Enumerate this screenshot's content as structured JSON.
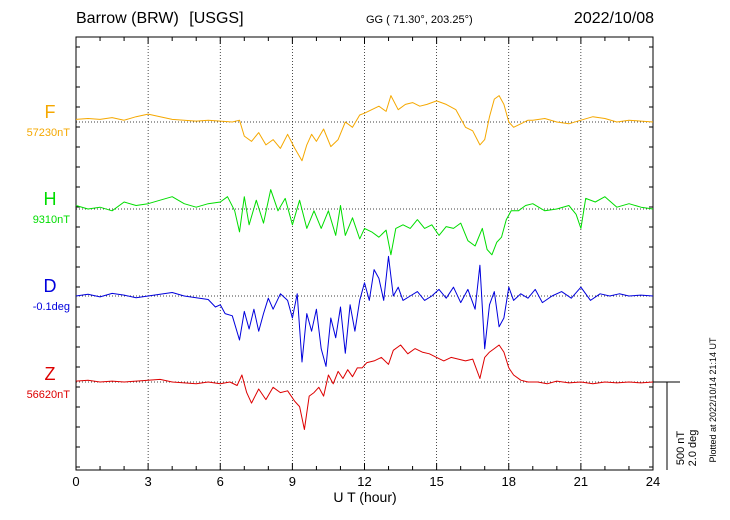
{
  "header": {
    "station": "Barrow (BRW)",
    "source": "[USGS]",
    "coordinates": "GG ( 71.30°, 203.25°)",
    "date": "2022/10/08"
  },
  "footer": {
    "plotted": "Plotted at 2022/10/14 21:14 UT"
  },
  "scale_bar": {
    "field": "500 nT",
    "angle": "2.0 deg"
  },
  "chart_data": {
    "type": "line",
    "xlabel": "U T (hour)",
    "xlim": [
      0,
      24
    ],
    "xticks": [
      0,
      3,
      6,
      9,
      12,
      15,
      18,
      21,
      24
    ],
    "colors": {
      "F": "#f5a800",
      "H": "#00dd00",
      "D": "#0000dd",
      "Z": "#dd0000"
    },
    "series": [
      {
        "name": "F",
        "baseline_label": "57230nT",
        "unit": "nT",
        "baseline": 57230,
        "x": [
          0,
          0.5,
          1,
          1.5,
          2,
          2.5,
          3,
          3.5,
          4,
          4.5,
          5,
          5.5,
          6,
          6.5,
          6.8,
          7.0,
          7.3,
          7.6,
          7.9,
          8.2,
          8.5,
          8.8,
          9.1,
          9.4,
          9.6,
          9.8,
          10.0,
          10.3,
          10.6,
          10.9,
          11.2,
          11.5,
          11.8,
          12.0,
          12.3,
          12.6,
          12.9,
          13.1,
          13.4,
          13.7,
          14.0,
          14.3,
          14.6,
          15.0,
          15.4,
          15.8,
          16.2,
          16.5,
          16.8,
          17.0,
          17.2,
          17.4,
          17.6,
          17.8,
          18.0,
          18.2,
          18.5,
          18.8,
          19.0,
          19.5,
          20.0,
          20.5,
          21.0,
          21.5,
          22,
          22.5,
          23,
          23.5,
          24
        ],
        "y": [
          57245,
          57250,
          57245,
          57255,
          57240,
          57260,
          57275,
          57260,
          57245,
          57240,
          57235,
          57240,
          57235,
          57230,
          57240,
          57150,
          57120,
          57170,
          57100,
          57130,
          57080,
          57160,
          57080,
          57010,
          57100,
          57160,
          57120,
          57190,
          57090,
          57130,
          57230,
          57200,
          57270,
          57280,
          57300,
          57320,
          57290,
          57380,
          57300,
          57330,
          57340,
          57320,
          57330,
          57350,
          57330,
          57300,
          57200,
          57180,
          57100,
          57130,
          57260,
          57360,
          57380,
          57330,
          57230,
          57200,
          57220,
          57240,
          57240,
          57250,
          57230,
          57220,
          57240,
          57260,
          57250,
          57230,
          57240,
          57235,
          57230
        ]
      },
      {
        "name": "H",
        "baseline_label": "9310nT",
        "unit": "nT",
        "baseline": 9310,
        "x": [
          0,
          0.5,
          1,
          1.5,
          2,
          2.5,
          3,
          3.5,
          4,
          4.5,
          5,
          5.5,
          6,
          6.3,
          6.6,
          6.8,
          7.0,
          7.2,
          7.5,
          7.8,
          8.1,
          8.4,
          8.7,
          9.0,
          9.3,
          9.6,
          9.9,
          10.2,
          10.5,
          10.8,
          11.0,
          11.2,
          11.5,
          11.8,
          12.0,
          12.3,
          12.6,
          12.9,
          13.1,
          13.3,
          13.6,
          13.9,
          14.2,
          14.5,
          14.8,
          15.1,
          15.4,
          15.7,
          16.0,
          16.3,
          16.6,
          16.9,
          17.1,
          17.3,
          17.5,
          17.7,
          17.9,
          18.1,
          18.4,
          18.7,
          19.0,
          19.5,
          20.0,
          20.5,
          20.8,
          21.0,
          21.2,
          21.6,
          22,
          22.5,
          23,
          23.5,
          24
        ],
        "y": [
          9330,
          9310,
          9320,
          9300,
          9350,
          9330,
          9340,
          9360,
          9380,
          9340,
          9320,
          9340,
          9350,
          9380,
          9300,
          9180,
          9380,
          9220,
          9360,
          9230,
          9420,
          9300,
          9370,
          9220,
          9360,
          9200,
          9300,
          9200,
          9300,
          9160,
          9330,
          9160,
          9260,
          9140,
          9200,
          9180,
          9150,
          9190,
          9050,
          9200,
          9220,
          9200,
          9250,
          9200,
          9220,
          9160,
          9210,
          9200,
          9230,
          9130,
          9100,
          9200,
          9080,
          9050,
          9120,
          9150,
          9250,
          9300,
          9300,
          9330,
          9340,
          9300,
          9310,
          9330,
          9280,
          9200,
          9370,
          9350,
          9380,
          9320,
          9340,
          9320,
          9310
        ]
      },
      {
        "name": "D",
        "baseline_label": "-0.1deg",
        "unit": "deg",
        "baseline": -0.1,
        "x": [
          0,
          0.5,
          1,
          1.5,
          2,
          2.5,
          3,
          3.5,
          4,
          4.5,
          5,
          5.5,
          5.8,
          6.0,
          6.2,
          6.5,
          6.8,
          7.0,
          7.2,
          7.4,
          7.6,
          7.8,
          8.0,
          8.2,
          8.5,
          8.8,
          9.0,
          9.2,
          9.4,
          9.6,
          9.8,
          10.0,
          10.2,
          10.4,
          10.6,
          10.8,
          11.0,
          11.2,
          11.4,
          11.6,
          11.8,
          12.0,
          12.2,
          12.4,
          12.6,
          12.8,
          13.0,
          13.2,
          13.4,
          13.6,
          13.9,
          14.2,
          14.5,
          14.8,
          15.1,
          15.4,
          15.7,
          16.0,
          16.3,
          16.6,
          16.8,
          17.0,
          17.2,
          17.4,
          17.6,
          17.8,
          18.0,
          18.2,
          18.5,
          18.8,
          19.1,
          19.4,
          19.8,
          20.2,
          20.6,
          21.0,
          21.4,
          21.8,
          22.2,
          22.6,
          23,
          23.5,
          24
        ],
        "y": [
          -0.1,
          -0.06,
          -0.12,
          -0.04,
          -0.08,
          -0.14,
          -0.1,
          -0.06,
          -0.02,
          -0.1,
          -0.14,
          -0.18,
          -0.35,
          -0.3,
          -0.5,
          -0.55,
          -1.1,
          -0.45,
          -0.85,
          -0.4,
          -0.9,
          -0.5,
          -0.15,
          -0.4,
          -0.05,
          -0.2,
          -0.6,
          -0.05,
          -1.6,
          -0.5,
          -0.9,
          -0.4,
          -1.3,
          -1.7,
          -0.6,
          -1.05,
          -0.35,
          -1.4,
          -0.3,
          -0.9,
          -0.2,
          0.2,
          -0.2,
          0.5,
          0.3,
          -0.2,
          0.8,
          -0.1,
          0.1,
          -0.2,
          -0.1,
          0.0,
          -0.2,
          -0.1,
          0.05,
          -0.15,
          0.1,
          -0.25,
          0.05,
          -0.4,
          0.6,
          -1.3,
          -0.3,
          0.0,
          -0.8,
          -0.6,
          0.1,
          -0.2,
          -0.05,
          -0.15,
          0.05,
          -0.25,
          -0.1,
          0.0,
          -0.15,
          0.1,
          -0.2,
          -0.05,
          -0.1,
          -0.05,
          -0.1,
          -0.08,
          -0.1
        ]
      },
      {
        "name": "Z",
        "baseline_label": "56620nT",
        "unit": "nT",
        "baseline": 56620,
        "x": [
          0,
          0.5,
          1,
          1.5,
          2,
          2.5,
          3,
          3.5,
          4,
          4.5,
          5,
          5.5,
          6,
          6.4,
          6.7,
          6.9,
          7.1,
          7.3,
          7.6,
          7.9,
          8.2,
          8.5,
          8.8,
          9.1,
          9.3,
          9.5,
          9.7,
          9.9,
          10.1,
          10.3,
          10.5,
          10.7,
          10.9,
          11.1,
          11.3,
          11.5,
          11.7,
          11.9,
          12.1,
          12.4,
          12.7,
          13.0,
          13.2,
          13.5,
          13.8,
          14.1,
          14.4,
          14.7,
          15.0,
          15.3,
          15.6,
          15.9,
          16.2,
          16.5,
          16.8,
          16.9,
          17.0,
          17.2,
          17.4,
          17.6,
          17.8,
          18.0,
          18.2,
          18.5,
          18.8,
          19.2,
          19.6,
          20,
          20.5,
          21,
          21.5,
          22,
          22.5,
          23,
          23.5,
          24
        ],
        "y": [
          56625,
          56630,
          56620,
          56625,
          56620,
          56625,
          56630,
          56635,
          56620,
          56615,
          56610,
          56620,
          56610,
          56620,
          56600,
          56660,
          56560,
          56500,
          56580,
          56520,
          56590,
          56560,
          56570,
          56510,
          56480,
          56350,
          56540,
          56560,
          56590,
          56540,
          56660,
          56610,
          56680,
          56640,
          56690,
          56650,
          56700,
          56700,
          56730,
          56740,
          56760,
          56720,
          56800,
          56830,
          56780,
          56810,
          56790,
          56780,
          56760,
          56740,
          56760,
          56750,
          56740,
          56750,
          56640,
          56700,
          56760,
          56790,
          56810,
          56830,
          56790,
          56700,
          56660,
          56630,
          56620,
          56620,
          56610,
          56625,
          56615,
          56620,
          56610,
          56620,
          56615,
          56620,
          56615,
          56620
        ]
      }
    ]
  }
}
